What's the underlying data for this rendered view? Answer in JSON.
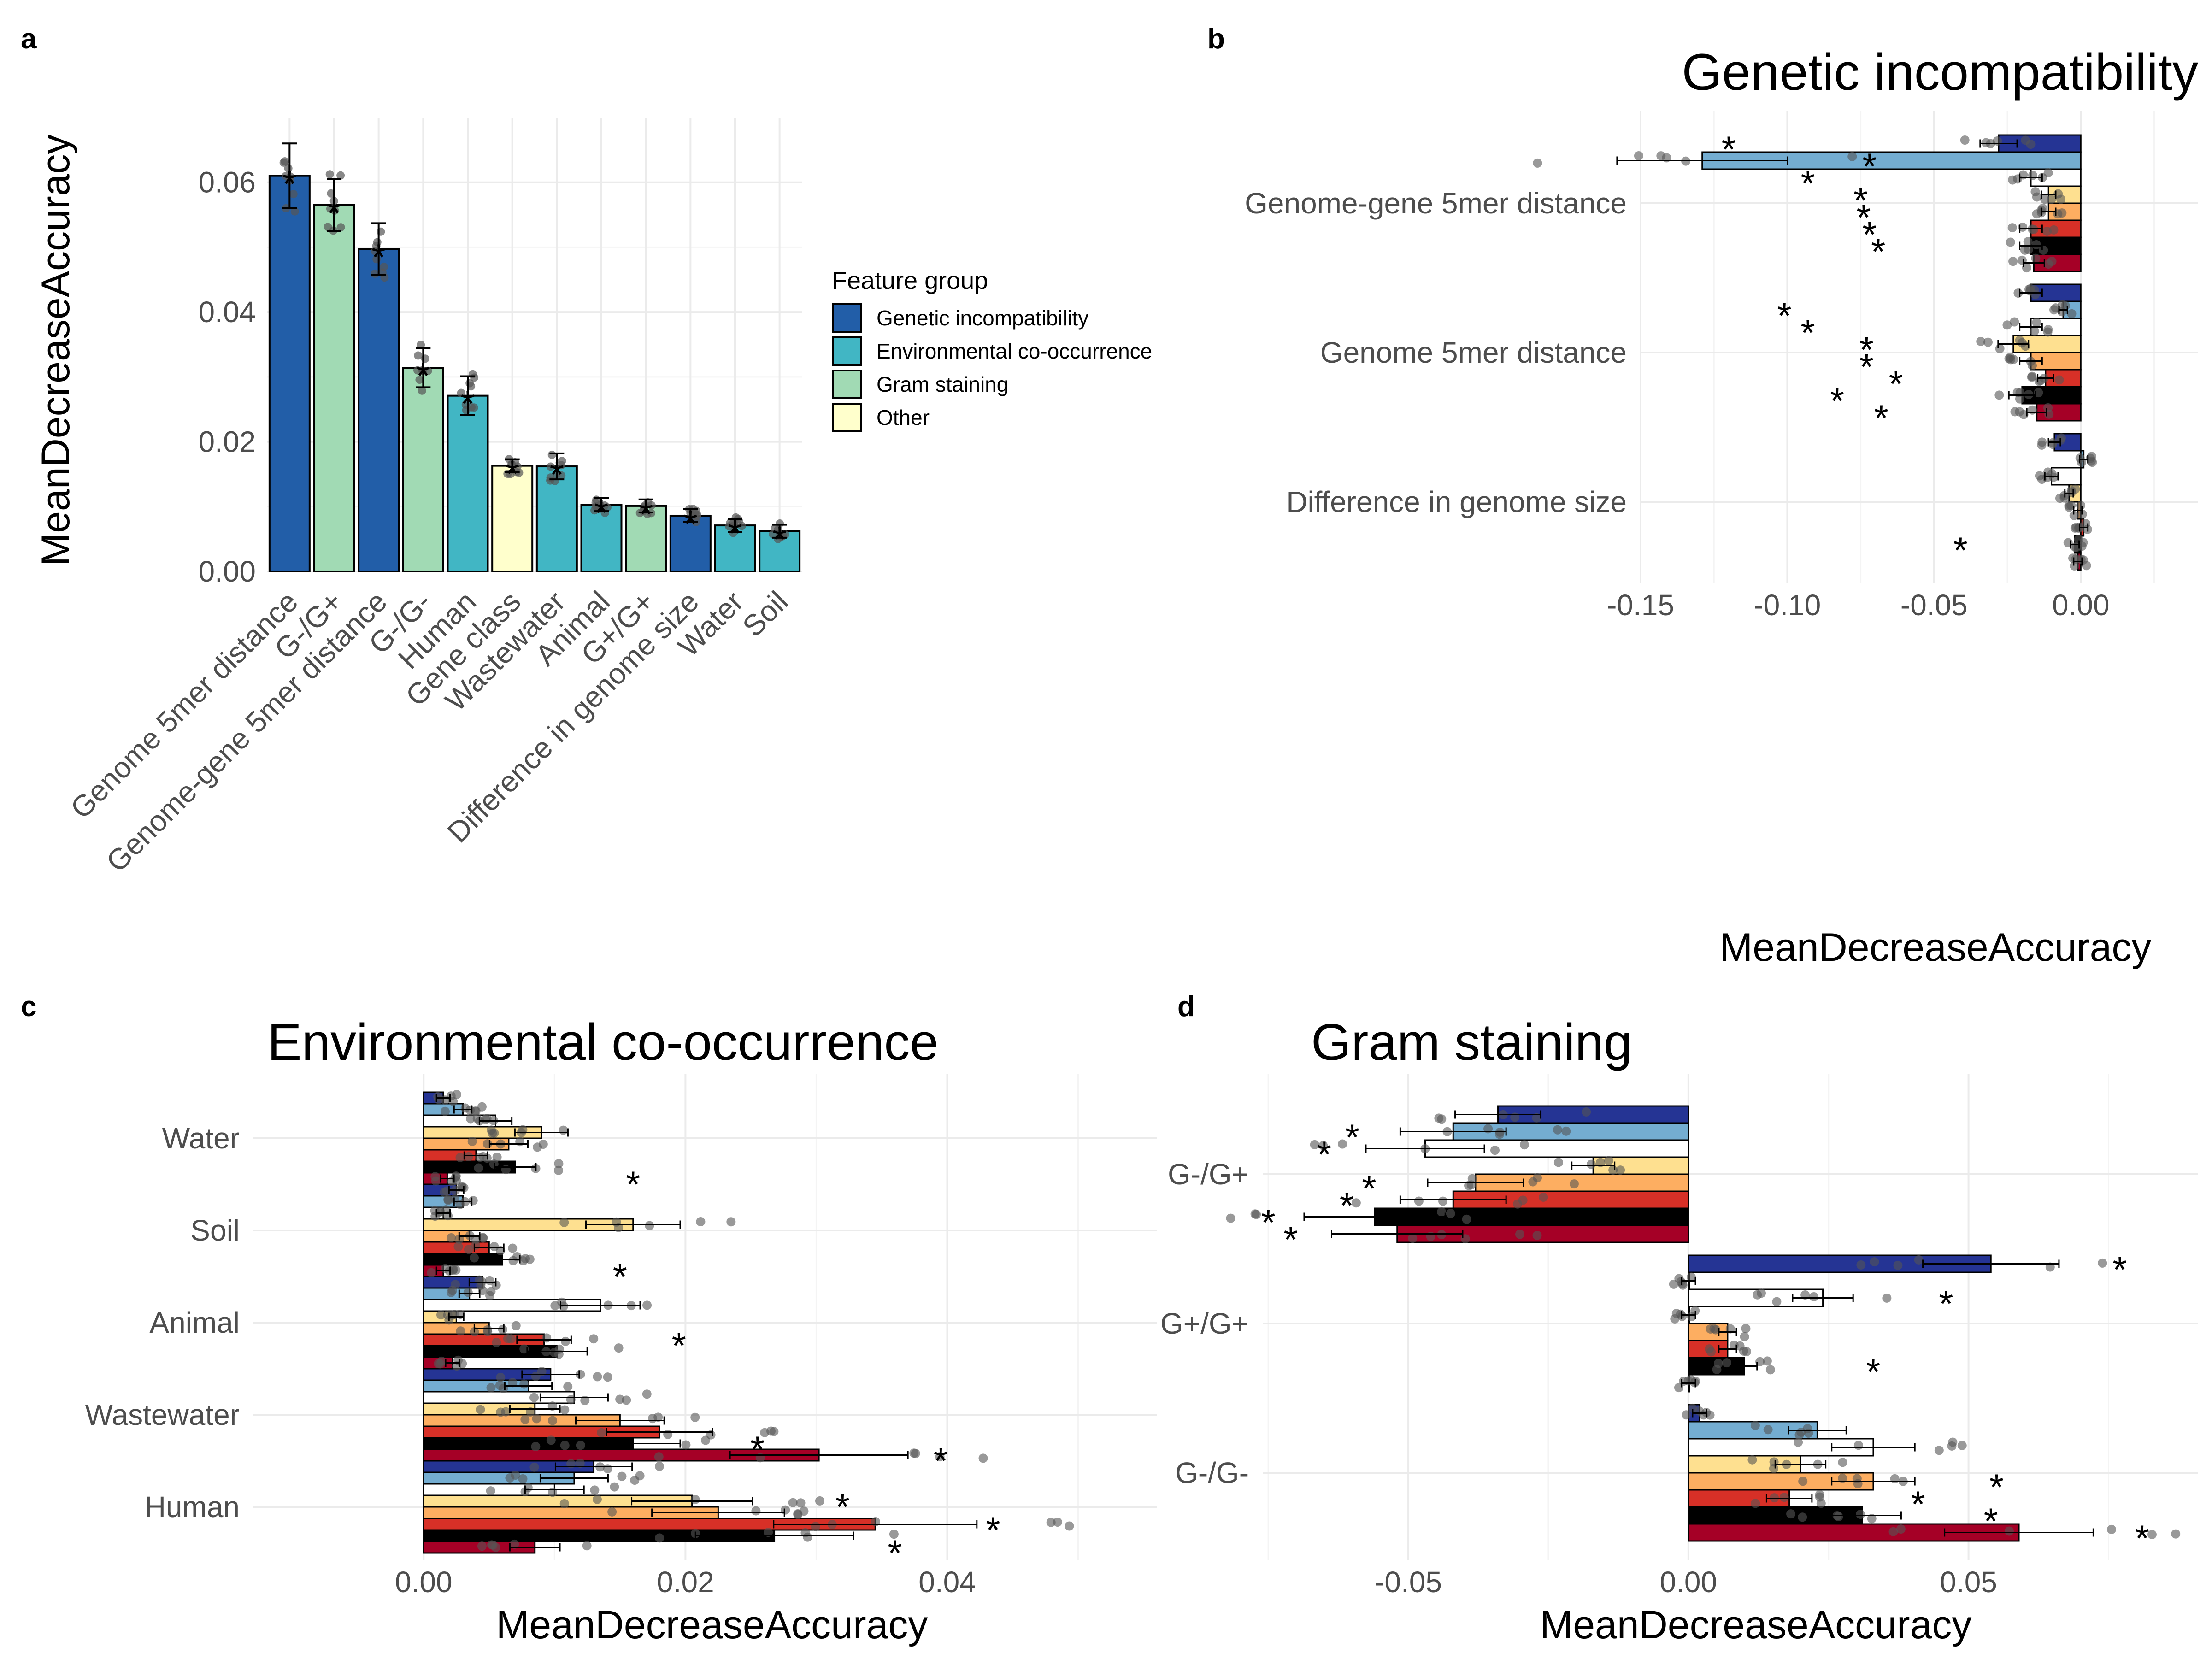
{
  "colors": {
    "groups": {
      "Genetic incompatibility": "#225ea8",
      "Environmental co-occurrence": "#41b6c4",
      "Gram staining": "#a1dab4",
      "Other": "#ffffcc"
    },
    "subsets": [
      "#253494",
      "#74add1",
      "#ffffff",
      "#fee090",
      "#fdae61",
      "#d73027",
      "#000000",
      "#a50026"
    ],
    "points": "#555555"
  },
  "panel_labels": {
    "a": "a",
    "b": "b",
    "c": "c",
    "d": "d"
  },
  "chart_data": [
    {
      "panel": "a",
      "type": "bar",
      "title": "",
      "xlabel": "",
      "ylabel": "MeanDecreaseAccuracy",
      "ylim": [
        0,
        0.07
      ],
      "yticks": [
        "0.00",
        "0.02",
        "0.04",
        "0.06"
      ],
      "grid": true,
      "legend": {
        "title": "Feature group",
        "position": "right",
        "entries": [
          "Genetic incompatibility",
          "Environmental co-occurrence",
          "Gram staining",
          "Other"
        ]
      },
      "categories": [
        "Genome 5mer distance",
        "G-/G+",
        "Genome-gene 5mer distance",
        "G-/G-",
        "Human",
        "Gene class",
        "Wastewater",
        "Animal",
        "G+/G+",
        "Difference in genome size",
        "Water",
        "Soil"
      ],
      "groups": [
        "Genetic incompatibility",
        "Gram staining",
        "Genetic incompatibility",
        "Gram staining",
        "Environmental co-occurrence",
        "Other",
        "Environmental co-occurrence",
        "Environmental co-occurrence",
        "Gram staining",
        "Genetic incompatibility",
        "Environmental co-occurrence",
        "Environmental co-occurrence"
      ],
      "values": [
        0.061,
        0.0565,
        0.0497,
        0.0314,
        0.0271,
        0.0163,
        0.0162,
        0.0103,
        0.0101,
        0.0086,
        0.0071,
        0.0062
      ],
      "errors": [
        0.005,
        0.004,
        0.004,
        0.003,
        0.003,
        0.001,
        0.002,
        0.001,
        0.001,
        0.001,
        0.001,
        0.001
      ],
      "significant": [
        true,
        true,
        true,
        true,
        true,
        true,
        true,
        true,
        true,
        true,
        true,
        true
      ],
      "star": "*"
    },
    {
      "panel": "b",
      "type": "bar",
      "orientation": "horizontal",
      "title": "Genetic incompatibility",
      "xlabel": "MeanDecreaseAccuracy",
      "ylabel": "",
      "xlim": [
        -0.15,
        0.04
      ],
      "xticks": [
        "-0.15",
        "-0.10",
        "-0.05",
        "0.00"
      ],
      "grid": true,
      "categories": [
        "Genome-gene 5mer distance",
        "Genome 5mer distance",
        "Difference in genome size"
      ],
      "series_values": [
        [
          -0.028,
          -0.129,
          -0.017,
          -0.011,
          -0.011,
          -0.017,
          -0.017,
          -0.016
        ],
        [
          -0.017,
          -0.006,
          -0.017,
          -0.023,
          -0.017,
          -0.012,
          -0.02,
          -0.015
        ],
        [
          -0.009,
          0.001,
          -0.01,
          -0.004,
          -0.001,
          0.001,
          -0.002,
          -0.001
        ]
      ],
      "series_values_note": "",
      "stars": [
        [
          -0.12,
          -0.072,
          -0.093,
          -0.075,
          -0.074,
          -0.072,
          -0.069,
          null
        ],
        [
          null,
          -0.101,
          -0.093,
          -0.073,
          -0.073,
          -0.063,
          -0.083,
          -0.068
        ],
        [
          null,
          null,
          null,
          null,
          null,
          null,
          -0.041,
          null
        ]
      ]
    },
    {
      "panel": "c",
      "type": "bar",
      "orientation": "horizontal",
      "title": "Environmental co-occurrence",
      "xlabel": "MeanDecreaseAccuracy",
      "ylabel": "",
      "xlim": [
        -0.013,
        0.056
      ],
      "xticks": [
        "0.00",
        "0.02",
        "0.04"
      ],
      "grid": true,
      "categories": [
        "Water",
        "Soil",
        "Animal",
        "Wastewater",
        "Human"
      ],
      "series_values": [
        [
          0.0015,
          0.003,
          0.0055,
          0.009,
          0.0065,
          0.004,
          0.007,
          0.0018
        ],
        [
          0.0025,
          0.003,
          0.0015,
          0.016,
          0.0035,
          0.005,
          0.006,
          0.0015
        ],
        [
          0.0045,
          0.0035,
          0.0135,
          0.0025,
          0.005,
          0.0092,
          0.0102,
          0.0022
        ],
        [
          0.0097,
          0.008,
          0.0115,
          0.0085,
          0.015,
          0.018,
          0.016,
          0.0302
        ],
        [
          0.013,
          0.0115,
          0.01,
          0.0205,
          0.0225,
          0.0345,
          0.0268,
          0.0085
        ]
      ],
      "stars": [
        [
          null,
          null,
          null,
          null,
          null,
          null,
          null,
          0.016
        ],
        [
          null,
          null,
          null,
          null,
          null,
          null,
          null,
          0.015
        ],
        [
          null,
          null,
          null,
          null,
          null,
          0.0195,
          null,
          null
        ],
        [
          null,
          null,
          null,
          null,
          null,
          null,
          0.0255,
          0.0395
        ],
        [
          null,
          null,
          null,
          0.032,
          null,
          0.0435,
          null,
          0.036
        ]
      ]
    },
    {
      "panel": "d",
      "type": "bar",
      "orientation": "horizontal",
      "title": "Gram staining",
      "xlabel": "MeanDecreaseAccuracy",
      "ylabel": "",
      "xlim": [
        -0.076,
        0.091
      ],
      "xticks": [
        "-0.05",
        "0.00",
        "0.05"
      ],
      "grid": true,
      "categories": [
        "G-/G+",
        "G+/G+",
        "G-/G-"
      ],
      "series_values": [
        [
          -0.034,
          -0.042,
          -0.047,
          -0.017,
          -0.038,
          -0.042,
          -0.056,
          -0.052
        ],
        [
          0.054,
          0.0,
          0.024,
          0.0,
          0.007,
          0.007,
          0.01,
          0.0
        ],
        [
          0.002,
          0.023,
          0.033,
          0.02,
          0.033,
          0.018,
          0.031,
          0.059
        ]
      ],
      "stars": [
        [
          null,
          -0.06,
          -0.065,
          null,
          -0.057,
          -0.061,
          -0.075,
          -0.071
        ],
        [
          0.077,
          null,
          0.046,
          null,
          null,
          null,
          0.033,
          null
        ],
        [
          null,
          null,
          null,
          null,
          0.055,
          0.041,
          0.054,
          0.081
        ]
      ]
    }
  ]
}
